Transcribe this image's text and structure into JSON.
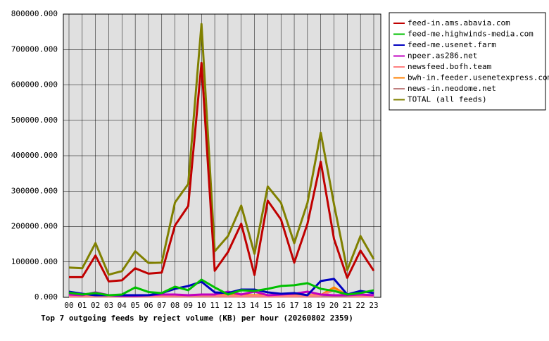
{
  "chart_data": {
    "type": "line",
    "title": "Top 7 outgoing feeds by reject volume (KB) per hour (20260802 2359)",
    "categories": [
      "00",
      "01",
      "02",
      "03",
      "04",
      "05",
      "06",
      "07",
      "08",
      "09",
      "10",
      "11",
      "12",
      "13",
      "14",
      "15",
      "16",
      "17",
      "18",
      "19",
      "20",
      "21",
      "22",
      "23"
    ],
    "ylim": [
      0,
      800000
    ],
    "yticks": [
      {
        "value": 0,
        "label": "0.000"
      },
      {
        "value": 100000,
        "label": "100000.000"
      },
      {
        "value": 200000,
        "label": "200000.000"
      },
      {
        "value": 300000,
        "label": "300000.000"
      },
      {
        "value": 400000,
        "label": "400000.000"
      },
      {
        "value": 500000,
        "label": "500000.000"
      },
      {
        "value": 600000,
        "label": "600000.000"
      },
      {
        "value": 700000,
        "label": "700000.000"
      },
      {
        "value": 800000,
        "label": "800000.000"
      }
    ],
    "grid": true,
    "legend": "right",
    "series": [
      {
        "name": "feed-in.ams.abavia.com",
        "color": "#c00000",
        "values": [
          57000,
          57000,
          118000,
          45000,
          48000,
          82000,
          67000,
          70000,
          203000,
          258000,
          662000,
          75000,
          128000,
          208000,
          63000,
          273000,
          220000,
          98000,
          208000,
          383000,
          165000,
          55000,
          132000,
          75000
        ]
      },
      {
        "name": "feed-me.highwinds-media.com",
        "color": "#00c000",
        "values": [
          13000,
          8000,
          12000,
          6000,
          8000,
          28000,
          15000,
          12000,
          30000,
          20000,
          50000,
          28000,
          8000,
          20000,
          18000,
          24000,
          32000,
          34000,
          40000,
          24000,
          18000,
          8000,
          12000,
          20000
        ]
      },
      {
        "name": "feed-me.usenet.farm",
        "color": "#0000c0",
        "values": [
          16000,
          10000,
          6000,
          6000,
          6000,
          6000,
          6000,
          12000,
          24000,
          32000,
          44000,
          14000,
          12000,
          22000,
          22000,
          14000,
          10000,
          12000,
          6000,
          46000,
          52000,
          8000,
          18000,
          12000
        ]
      },
      {
        "name": "npeer.as286.net",
        "color": "#c000c0",
        "values": [
          8000,
          6000,
          14000,
          6000,
          4000,
          4000,
          6000,
          8000,
          8000,
          6000,
          8000,
          8000,
          16000,
          8000,
          16000,
          6000,
          8000,
          10000,
          16000,
          8000,
          6000,
          6000,
          8000,
          6000
        ]
      },
      {
        "name": "newsfeed.bofh.team",
        "color": "#ff8080",
        "values": [
          3000,
          3000,
          4000,
          3000,
          3000,
          3000,
          3000,
          3000,
          4000,
          4000,
          5000,
          4000,
          4000,
          3000,
          4000,
          3000,
          3000,
          3000,
          4000,
          5000,
          20000,
          5000,
          3000,
          3000
        ]
      },
      {
        "name": "bwh-in.feeder.usenetexpress.com",
        "color": "#ff8000",
        "values": [
          6000,
          6000,
          6000,
          6000,
          6000,
          6000,
          6000,
          6000,
          6000,
          6000,
          7000,
          6000,
          6000,
          6000,
          6000,
          6000,
          6000,
          6000,
          6000,
          6000,
          28000,
          6000,
          6000,
          6000
        ]
      },
      {
        "name": "news-in.neodome.net",
        "color": "#c08080",
        "values": [
          2000,
          2000,
          2000,
          2000,
          2000,
          2000,
          2000,
          2000,
          2000,
          2000,
          2000,
          2000,
          2000,
          2000,
          2000,
          2000,
          2000,
          2000,
          2000,
          2000,
          2000,
          2000,
          2000,
          2000
        ]
      },
      {
        "name": "TOTAL (all feeds)",
        "color": "#808000",
        "values": [
          84000,
          82000,
          153000,
          64000,
          74000,
          130000,
          97000,
          98000,
          268000,
          320000,
          772000,
          130000,
          173000,
          259000,
          123000,
          313000,
          267000,
          153000,
          267000,
          465000,
          263000,
          77000,
          173000,
          108000
        ]
      }
    ]
  }
}
